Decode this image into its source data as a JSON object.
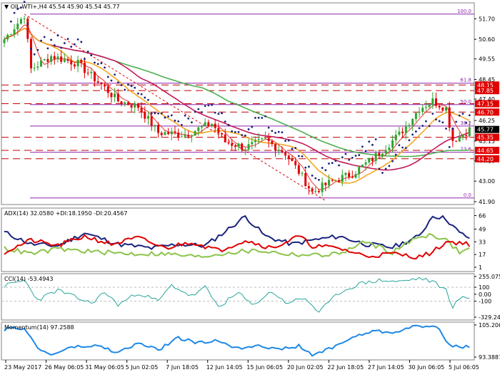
{
  "chart_data": [
    {
      "type": "candlestick",
      "panel": "main",
      "title": "OIL.WTI+,H4",
      "ohlc_header": "45.54 45.90 45.54 45.77",
      "ylim": [
        41.9,
        52.4
      ],
      "price_ticks": [
        "51.70",
        "50.60",
        "49.55",
        "48.45",
        "47.40",
        "46.25",
        "45.15",
        "44.10",
        "43.00",
        "41.90"
      ],
      "marked_levels": [
        {
          "label": "48.15",
          "value": 48.15,
          "color": "#e00000"
        },
        {
          "label": "47.85",
          "value": 47.85,
          "color": "#e00000"
        },
        {
          "label": "47.15",
          "value": 47.15,
          "color": "#e00000"
        },
        {
          "label": "46.70",
          "value": 46.7,
          "color": "#e00000"
        },
        {
          "label": "45.77",
          "value": 45.77,
          "color": "#000000"
        },
        {
          "label": "45.35",
          "value": 45.35,
          "color": "#e00000"
        },
        {
          "label": "44.65",
          "value": 44.65,
          "color": "#e00000"
        },
        {
          "label": "44.20",
          "value": 44.2,
          "color": "#e00000"
        }
      ],
      "fib_levels": [
        {
          "label": "100.0",
          "value": 51.95
        },
        {
          "label": "61.8",
          "value": 48.25
        },
        {
          "label": "50.0",
          "value": 47.1
        },
        {
          "label": "38.2",
          "value": 45.95
        },
        {
          "label": "23.6",
          "value": 44.55
        },
        {
          "label": "0.0",
          "value": 42.1
        }
      ],
      "x_ticks": [
        "23 May 2017",
        "26 May 06:05",
        "31 May 06:05",
        "5 Jun 02:05",
        "7 Jun 18:05",
        "12 Jun 14:05",
        "15 Jun 06:05",
        "20 Jun 02:05",
        "22 Jun 18:05",
        "27 Jun 14:05",
        "30 Jun 06:05",
        "5 Jul 06:05"
      ],
      "close_key_points": [
        [
          0,
          50.6
        ],
        [
          6,
          51.9
        ],
        [
          8,
          49.0
        ],
        [
          14,
          49.7
        ],
        [
          22,
          49.3
        ],
        [
          30,
          48.0
        ],
        [
          34,
          47.3
        ],
        [
          40,
          47.0
        ],
        [
          46,
          45.6
        ],
        [
          54,
          45.5
        ],
        [
          62,
          46.1
        ],
        [
          66,
          45.1
        ],
        [
          72,
          44.8
        ],
        [
          78,
          45.2
        ],
        [
          84,
          44.5
        ],
        [
          88,
          43.5
        ],
        [
          92,
          42.4
        ],
        [
          98,
          43.0
        ],
        [
          104,
          43.4
        ],
        [
          110,
          44.2
        ],
        [
          118,
          45.5
        ],
        [
          124,
          46.9
        ],
        [
          128,
          47.3
        ],
        [
          132,
          46.9
        ],
        [
          134,
          45.2
        ],
        [
          137,
          45.5
        ],
        [
          139,
          45.77
        ]
      ],
      "colors": {
        "up": "#2ea52e",
        "down": "#e00000",
        "psar": "#1a237e",
        "ma_fast": "#e53935",
        "ma_orange": "#f5a623",
        "ma_magenta": "#c2185b",
        "ma_green": "#4caf50",
        "fib": "#8e24aa"
      }
    },
    {
      "type": "line",
      "panel": "adx",
      "title": "ADX(14) 32.0580 +DI:18.1950 -DI:20.4567",
      "y_ticks": [
        "66",
        "49",
        "33",
        "17",
        "1"
      ],
      "series": [
        {
          "name": "ADX",
          "color": "#1a237e",
          "key_points": [
            [
              0,
              45
            ],
            [
              8,
              30
            ],
            [
              16,
              28
            ],
            [
              24,
              44
            ],
            [
              34,
              30
            ],
            [
              44,
              25
            ],
            [
              52,
              30
            ],
            [
              60,
              28
            ],
            [
              66,
              46
            ],
            [
              72,
              65
            ],
            [
              78,
              40
            ],
            [
              86,
              30
            ],
            [
              92,
              35
            ],
            [
              100,
              40
            ],
            [
              108,
              30
            ],
            [
              116,
              26
            ],
            [
              124,
              40
            ],
            [
              128,
              66
            ],
            [
              132,
              62
            ],
            [
              136,
              44
            ],
            [
              139,
              38
            ]
          ]
        },
        {
          "name": "+DI",
          "color": "#8bc34a",
          "key_points": [
            [
              0,
              25
            ],
            [
              8,
              18
            ],
            [
              16,
              24
            ],
            [
              28,
              20
            ],
            [
              38,
              18
            ],
            [
              48,
              18
            ],
            [
              58,
              14
            ],
            [
              68,
              20
            ],
            [
              76,
              22
            ],
            [
              84,
              18
            ],
            [
              92,
              16
            ],
            [
              100,
              18
            ],
            [
              108,
              33
            ],
            [
              116,
              20
            ],
            [
              124,
              40
            ],
            [
              128,
              42
            ],
            [
              132,
              35
            ],
            [
              136,
              20
            ],
            [
              139,
              24
            ]
          ]
        },
        {
          "name": "-DI",
          "color": "#e00000",
          "key_points": [
            [
              0,
              20
            ],
            [
              8,
              35
            ],
            [
              16,
              28
            ],
            [
              24,
              40
            ],
            [
              32,
              30
            ],
            [
              40,
              38
            ],
            [
              48,
              25
            ],
            [
              56,
              33
            ],
            [
              64,
              22
            ],
            [
              72,
              35
            ],
            [
              80,
              25
            ],
            [
              88,
              40
            ],
            [
              92,
              28
            ],
            [
              100,
              25
            ],
            [
              108,
              15
            ],
            [
              116,
              18
            ],
            [
              124,
              14
            ],
            [
              128,
              20
            ],
            [
              132,
              33
            ],
            [
              136,
              32
            ],
            [
              139,
              30
            ]
          ]
        }
      ]
    },
    {
      "type": "line",
      "panel": "cci",
      "title": "CCI(14) -53.4943",
      "y_ticks": [
        "255.0759",
        "100",
        "0.00",
        "-100",
        "-329.248"
      ],
      "series": [
        {
          "name": "CCI",
          "color": "#26a69a",
          "key_points": [
            [
              0,
              120
            ],
            [
              6,
              200
            ],
            [
              10,
              -80
            ],
            [
              16,
              60
            ],
            [
              20,
              -20
            ],
            [
              26,
              -130
            ],
            [
              30,
              30
            ],
            [
              34,
              -150
            ],
            [
              40,
              20
            ],
            [
              46,
              -100
            ],
            [
              50,
              130
            ],
            [
              56,
              -30
            ],
            [
              60,
              100
            ],
            [
              64,
              -180
            ],
            [
              70,
              20
            ],
            [
              74,
              -160
            ],
            [
              80,
              40
            ],
            [
              84,
              -120
            ],
            [
              90,
              -60
            ],
            [
              94,
              -260
            ],
            [
              100,
              20
            ],
            [
              106,
              150
            ],
            [
              112,
              200
            ],
            [
              118,
              180
            ],
            [
              124,
              230
            ],
            [
              128,
              180
            ],
            [
              132,
              60
            ],
            [
              134,
              -180
            ],
            [
              136,
              -60
            ],
            [
              139,
              -53
            ]
          ]
        }
      ]
    },
    {
      "type": "line",
      "panel": "momentum",
      "title": "Momentum(14) 97.2588",
      "y_ticks": [
        "105.2062",
        "93.3887"
      ],
      "series": [
        {
          "name": "Momentum",
          "color": "#1e88e5",
          "key_points": [
            [
              0,
              103.5
            ],
            [
              6,
              104.2
            ],
            [
              10,
              96.5
            ],
            [
              14,
              94.2
            ],
            [
              20,
              97.0
            ],
            [
              28,
              97.5
            ],
            [
              34,
              95.0
            ],
            [
              40,
              98.5
            ],
            [
              46,
              96.0
            ],
            [
              52,
              100.5
            ],
            [
              58,
              98.5
            ],
            [
              64,
              99.5
            ],
            [
              70,
              96.5
            ],
            [
              76,
              98.0
            ],
            [
              82,
              96.0
            ],
            [
              88,
              97.5
            ],
            [
              92,
              94.0
            ],
            [
              98,
              97.0
            ],
            [
              104,
              100.5
            ],
            [
              110,
              103.0
            ],
            [
              116,
              102.5
            ],
            [
              122,
              104.5
            ],
            [
              126,
              104.8
            ],
            [
              130,
              104.2
            ],
            [
              133,
              97.5
            ],
            [
              136,
              97.0
            ],
            [
              139,
              97.26
            ]
          ]
        }
      ]
    }
  ],
  "colors": {
    "background": "#ffffff",
    "grid": "#c8c8c8",
    "text": "#000000",
    "label_red_bg": "#e00000",
    "label_black_bg": "#000000"
  }
}
